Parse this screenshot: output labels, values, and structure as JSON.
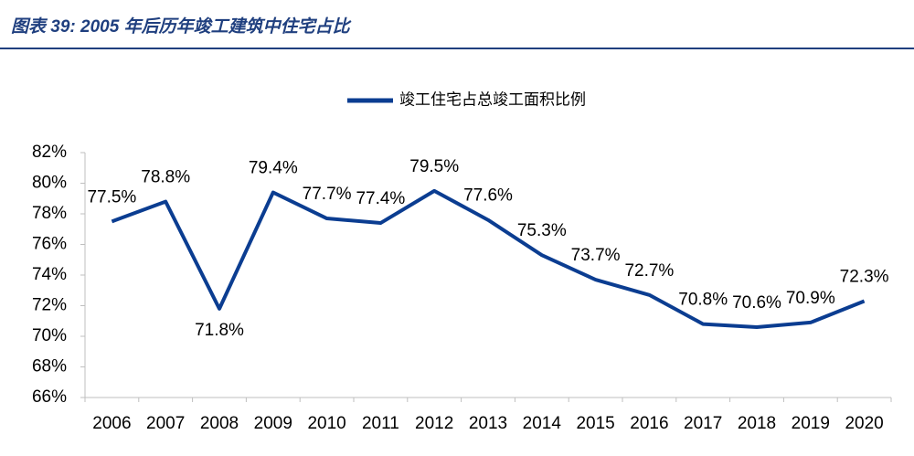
{
  "chart_data": {
    "type": "line",
    "title": "图表 39: 2005 年后历年竣工建筑中住宅占比",
    "categories": [
      "2006",
      "2007",
      "2008",
      "2009",
      "2010",
      "2011",
      "2012",
      "2013",
      "2014",
      "2015",
      "2016",
      "2017",
      "2018",
      "2019",
      "2020"
    ],
    "series": [
      {
        "name": "竣工住宅占总竣工面积比例",
        "color": "#0b3d91",
        "values": [
          77.5,
          78.8,
          71.8,
          79.4,
          77.7,
          77.4,
          79.5,
          77.6,
          75.3,
          73.7,
          72.7,
          70.8,
          70.6,
          70.9,
          72.3
        ],
        "value_labels": [
          "77.5%",
          "78.8%",
          "71.8%",
          "79.4%",
          "77.7%",
          "77.4%",
          "79.5%",
          "77.6%",
          "75.3%",
          "73.7%",
          "72.7%",
          "70.8%",
          "70.6%",
          "70.9%",
          "72.3%"
        ]
      }
    ],
    "ylim": [
      66,
      82
    ],
    "yticks": [
      {
        "value": 66,
        "label": "66%"
      },
      {
        "value": 68,
        "label": "68%"
      },
      {
        "value": 70,
        "label": "70%"
      },
      {
        "value": 72,
        "label": "72%"
      },
      {
        "value": 74,
        "label": "74%"
      },
      {
        "value": 76,
        "label": "76%"
      },
      {
        "value": 78,
        "label": "78%"
      },
      {
        "value": 80,
        "label": "80%"
      },
      {
        "value": 82,
        "label": "82%"
      }
    ],
    "legend": "top"
  }
}
